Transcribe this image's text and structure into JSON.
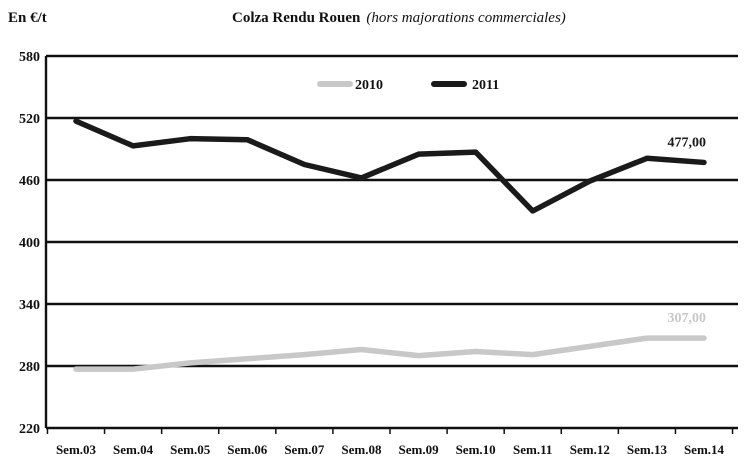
{
  "header": {
    "unit_label": "En €/t",
    "title": "Colza Rendu Rouen",
    "subtitle": "(hors majorations commerciales)"
  },
  "chart_data": {
    "type": "line",
    "title": "Colza Rendu Rouen",
    "subtitle": "(hors majorations commerciales)",
    "ylabel": "En €/t",
    "xlabel": "",
    "categories": [
      "Sem.03",
      "Sem.04",
      "Sem.05",
      "Sem.06",
      "Sem.07",
      "Sem.08",
      "Sem.09",
      "Sem.10",
      "Sem.11",
      "Sem.12",
      "Sem.13",
      "Sem.14"
    ],
    "ylim": [
      220,
      580
    ],
    "yticks": [
      220,
      280,
      340,
      400,
      460,
      520,
      580
    ],
    "grid": true,
    "legend_position": "top-center",
    "series": [
      {
        "name": "2010",
        "color": "#c8c8c8",
        "values": [
          277,
          277,
          283,
          287,
          291,
          296,
          290,
          294,
          291,
          299,
          307,
          307
        ],
        "end_label": "307,00"
      },
      {
        "name": "2011",
        "color": "#1a1a1a",
        "values": [
          517,
          493,
          500,
          499,
          475,
          462,
          485,
          487,
          430,
          459,
          481,
          477
        ],
        "end_label": "477,00"
      }
    ]
  }
}
